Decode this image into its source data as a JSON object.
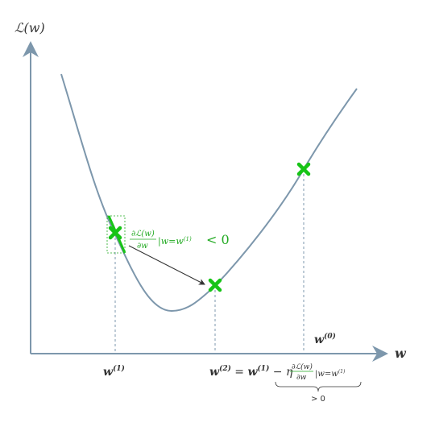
{
  "axes": {
    "y_label": "ℒ(w)",
    "x_label": "w"
  },
  "points": {
    "w0": {
      "label_base": "w",
      "label_sup": "(0)"
    },
    "w1": {
      "label_base": "w",
      "label_sup": "(1)"
    },
    "w2": {
      "label_base": "w",
      "label_sup": "(2)"
    }
  },
  "gradient_annotation": {
    "numerator": "∂ℒ(w)",
    "denominator": "∂w",
    "evaluated_at": "|w=w",
    "evaluated_sup": "(1)",
    "relation": "< 0"
  },
  "update_rule": {
    "lhs_base": "w",
    "lhs_sup": "(2)",
    "equals": " = ",
    "rhs_base": "w",
    "rhs_sup": "(1)",
    "minus_eta": " − η",
    "frac_num": "∂ℒ(w)",
    "frac_den": "∂w",
    "eval": "|w=w",
    "eval_sup": "(1)",
    "brace_note": "> 0"
  },
  "colors": {
    "curve": "#7d97ac",
    "axis": "#7d97ac",
    "marker": "#17c417",
    "annotation": "#22aa22",
    "guide": "#7d97ac",
    "arrow": "#333333"
  }
}
